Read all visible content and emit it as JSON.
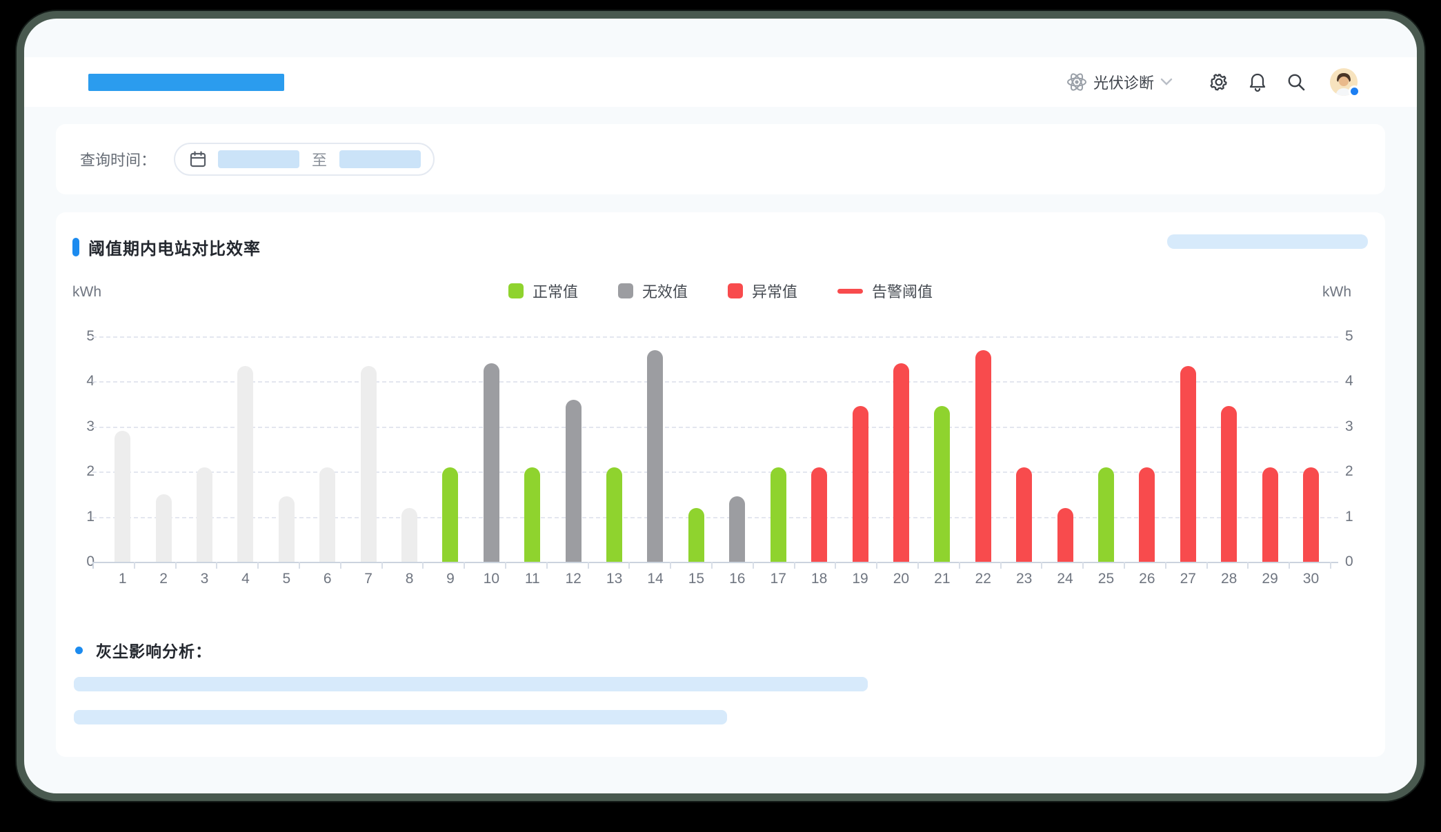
{
  "header": {
    "nav_label": "光伏诊断",
    "icons": [
      "atom-icon",
      "chevron-down-icon",
      "gear-icon",
      "bell-icon",
      "search-icon"
    ]
  },
  "filter": {
    "label": "查询时间：",
    "separator": "至",
    "calendar_icon": "calendar-icon"
  },
  "chart": {
    "title": "阈值期内电站对比效率",
    "unit_left": "kWh",
    "unit_right": "kWh",
    "legend": [
      {
        "label": "正常值",
        "color": "#8FD32E",
        "shape": "square"
      },
      {
        "label": "无效值",
        "color": "#9C9DA1",
        "shape": "square"
      },
      {
        "label": "异常值",
        "color": "#F84B4D",
        "shape": "square"
      },
      {
        "label": "告警阈值",
        "color": "#F84B4D",
        "shape": "line"
      }
    ],
    "status_colors": {
      "baseline": "#EDEDED",
      "normal": "#8FD32E",
      "invalid": "#9C9DA1",
      "abnormal": "#F84B4D"
    }
  },
  "chart_data": {
    "type": "bar",
    "title": "阈值期内电站对比效率",
    "ylabel": "kWh",
    "ylim": [
      0,
      5
    ],
    "yticks": [
      0,
      1,
      2,
      3,
      4,
      5
    ],
    "grid": "horizontal-dashed",
    "legend_position": "top-center",
    "categories": [
      1,
      2,
      3,
      4,
      5,
      6,
      7,
      8,
      9,
      10,
      11,
      12,
      13,
      14,
      15,
      16,
      17,
      18,
      19,
      20,
      21,
      22,
      23,
      24,
      25,
      26,
      27,
      28,
      29,
      30
    ],
    "bars": [
      {
        "x": 1,
        "value": 2.9,
        "status": "baseline"
      },
      {
        "x": 2,
        "value": 1.5,
        "status": "baseline"
      },
      {
        "x": 3,
        "value": 2.1,
        "status": "baseline"
      },
      {
        "x": 4,
        "value": 4.35,
        "status": "baseline"
      },
      {
        "x": 5,
        "value": 1.45,
        "status": "baseline"
      },
      {
        "x": 6,
        "value": 2.1,
        "status": "baseline"
      },
      {
        "x": 7,
        "value": 4.35,
        "status": "baseline"
      },
      {
        "x": 8,
        "value": 1.2,
        "status": "baseline"
      },
      {
        "x": 9,
        "value": 2.1,
        "status": "normal"
      },
      {
        "x": 10,
        "value": 4.4,
        "status": "invalid"
      },
      {
        "x": 11,
        "value": 2.1,
        "status": "normal"
      },
      {
        "x": 12,
        "value": 3.6,
        "status": "invalid"
      },
      {
        "x": 13,
        "value": 2.1,
        "status": "normal"
      },
      {
        "x": 14,
        "value": 4.7,
        "status": "invalid"
      },
      {
        "x": 15,
        "value": 1.2,
        "status": "normal"
      },
      {
        "x": 16,
        "value": 1.45,
        "status": "invalid"
      },
      {
        "x": 17,
        "value": 2.1,
        "status": "normal"
      },
      {
        "x": 18,
        "value": 2.1,
        "status": "abnormal"
      },
      {
        "x": 19,
        "value": 3.45,
        "status": "abnormal"
      },
      {
        "x": 20,
        "value": 4.4,
        "status": "abnormal"
      },
      {
        "x": 21,
        "value": 3.45,
        "status": "normal"
      },
      {
        "x": 22,
        "value": 4.7,
        "status": "abnormal"
      },
      {
        "x": 23,
        "value": 2.1,
        "status": "abnormal"
      },
      {
        "x": 24,
        "value": 1.2,
        "status": "abnormal"
      },
      {
        "x": 25,
        "value": 2.1,
        "status": "normal"
      },
      {
        "x": 26,
        "value": 2.1,
        "status": "abnormal"
      },
      {
        "x": 27,
        "value": 4.35,
        "status": "abnormal"
      },
      {
        "x": 28,
        "value": 3.45,
        "status": "abnormal"
      },
      {
        "x": 29,
        "value": 2.1,
        "status": "abnormal"
      },
      {
        "x": 30,
        "value": 2.1,
        "status": "abnormal"
      }
    ]
  },
  "dust": {
    "title": "灰尘影响分析：",
    "placeholders": [
      {
        "width_pct": 61.1
      },
      {
        "width_pct": 50.5
      }
    ]
  }
}
